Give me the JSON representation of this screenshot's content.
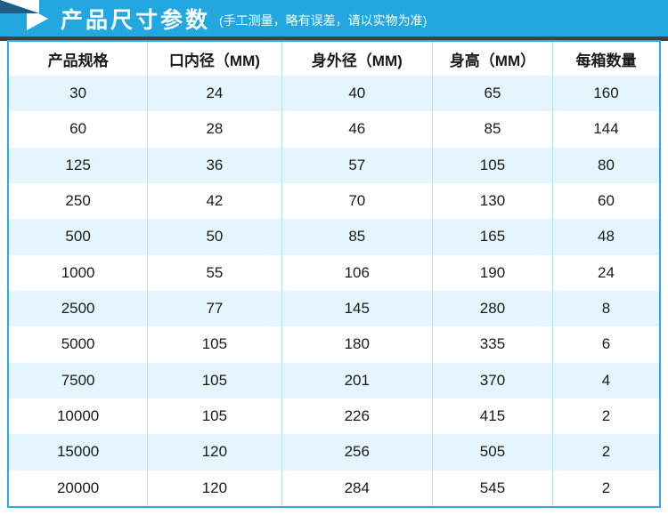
{
  "header": {
    "title": "产品尺寸参数",
    "subtitle": "(手工测量，略有误差，请以实物为准)",
    "icon": "play-triangle-icon"
  },
  "colors": {
    "bar": "#22a7e0",
    "fold": "#1d5c84",
    "shadow": "#3f3f3f",
    "table_border": "#2aabe2",
    "column_separator": "#b5e3f5",
    "row_stripe": "#e4f5fd"
  },
  "table": {
    "columns": [
      "产品规格",
      "口内径（MM)",
      "身外径（MM)",
      "身高（MM）",
      "每箱数量"
    ],
    "rows": [
      [
        "30",
        "24",
        "40",
        "65",
        "160"
      ],
      [
        "60",
        "28",
        "46",
        "85",
        "144"
      ],
      [
        "125",
        "36",
        "57",
        "105",
        "80"
      ],
      [
        "250",
        "42",
        "70",
        "130",
        "60"
      ],
      [
        "500",
        "50",
        "85",
        "165",
        "48"
      ],
      [
        "1000",
        "55",
        "106",
        "190",
        "24"
      ],
      [
        "2500",
        "77",
        "145",
        "280",
        "8"
      ],
      [
        "5000",
        "105",
        "180",
        "335",
        "6"
      ],
      [
        "7500",
        "105",
        "201",
        "370",
        "4"
      ],
      [
        "10000",
        "105",
        "226",
        "415",
        "2"
      ],
      [
        "15000",
        "120",
        "256",
        "505",
        "2"
      ],
      [
        "20000",
        "120",
        "284",
        "545",
        "2"
      ]
    ]
  }
}
